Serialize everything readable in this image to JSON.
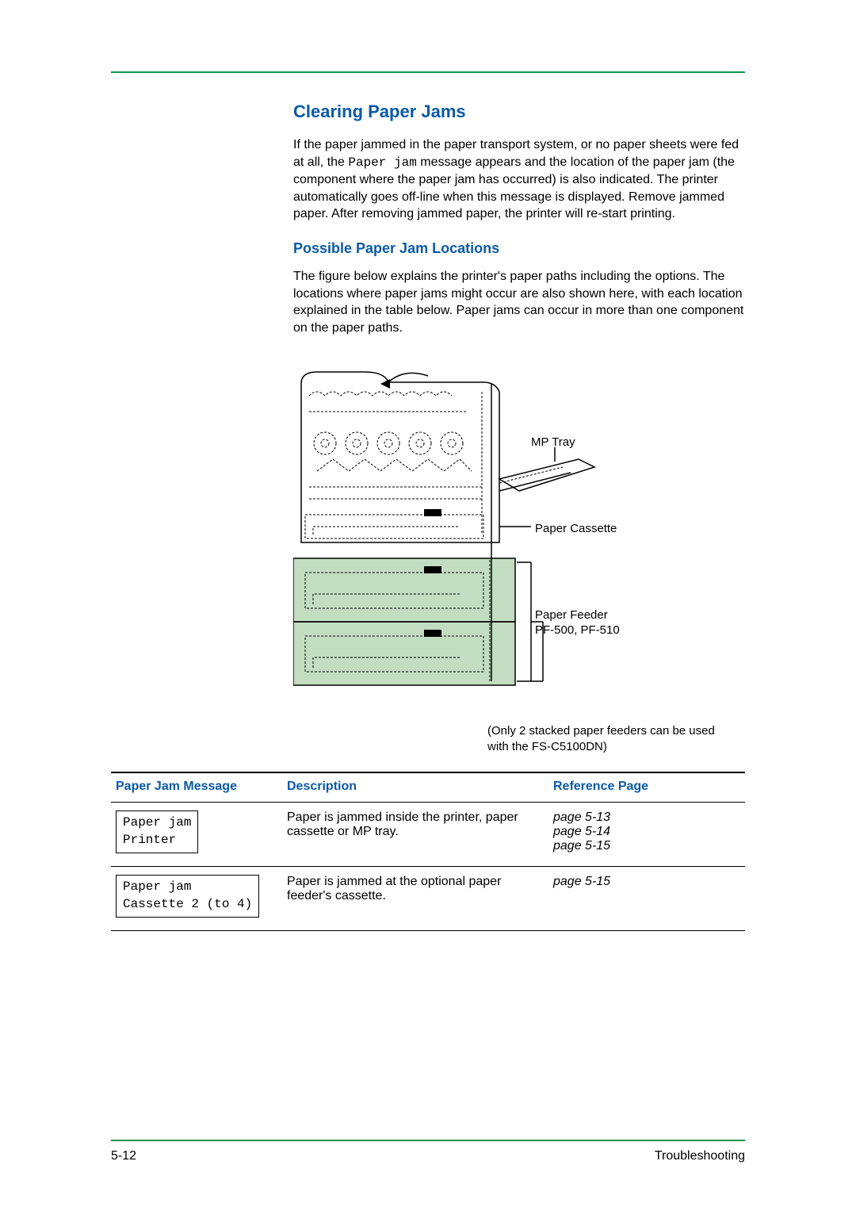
{
  "colors": {
    "heading": "#0a5aa6",
    "rule": "#14934a",
    "text": "#000000",
    "diagram_tint": "#c2ddc2",
    "background": "#ffffff"
  },
  "header": {
    "title": "Clearing Paper Jams",
    "intro_pre": "If the paper jammed in the paper transport system, or no paper sheets were fed at all, the ",
    "intro_mono": "Paper jam",
    "intro_post": " message appears and the location of the paper jam (the component where the paper jam has occurred) is also indicated. The printer automatically goes off-line when this message is displayed. Remove jammed paper. After removing jammed paper, the printer will re-start printing."
  },
  "section2": {
    "title": "Possible Paper Jam Locations",
    "body": "The figure below explains the printer's paper paths including the options. The locations where paper jams might occur are also shown here, with each location explained in the table below. Paper jams can occur in more than one component on the paper paths."
  },
  "figure": {
    "labels": {
      "mp_tray": "MP Tray",
      "paper_cassette": "Paper Cassette",
      "paper_feeder_l1": "Paper Feeder",
      "paper_feeder_l2": "PF-500, PF-510"
    },
    "note": "(Only 2 stacked paper feeders can be used with the FS-C5100DN)"
  },
  "table": {
    "columns": [
      "Paper Jam Message",
      "Description",
      "Reference Page"
    ],
    "col_widths_pct": [
      27,
      42,
      31
    ],
    "rows": [
      {
        "message": "Paper jam\nPrinter",
        "description": "Paper is jammed inside the printer, paper cassette or MP tray.",
        "references": [
          "page 5-13",
          "page 5-14",
          "page 5-15"
        ]
      },
      {
        "message": "Paper jam\nCassette 2 (to 4)",
        "description": "Paper is jammed at the optional paper feeder's cassette.",
        "references": [
          "page 5-15"
        ]
      }
    ]
  },
  "footer": {
    "page": "5-12",
    "section": "Troubleshooting"
  }
}
